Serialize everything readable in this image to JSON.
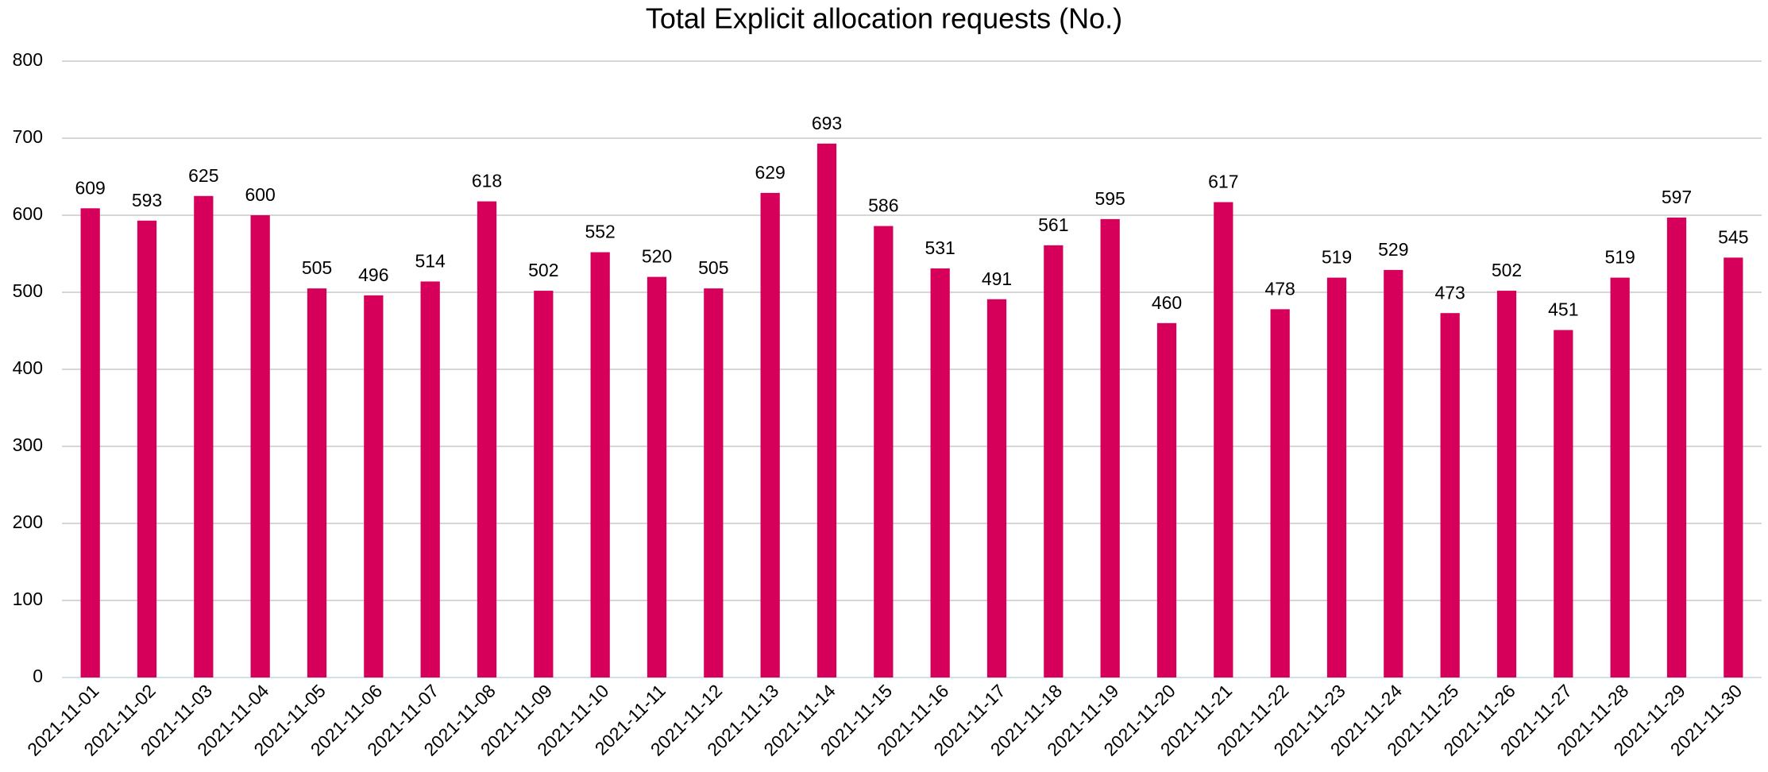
{
  "chart_data": {
    "type": "bar",
    "title": "Total Explicit allocation requests (No.)",
    "categories": [
      "2021-11-01",
      "2021-11-02",
      "2021-11-03",
      "2021-11-04",
      "2021-11-05",
      "2021-11-06",
      "2021-11-07",
      "2021-11-08",
      "2021-11-09",
      "2021-11-10",
      "2021-11-11",
      "2021-11-12",
      "2021-11-13",
      "2021-11-14",
      "2021-11-15",
      "2021-11-16",
      "2021-11-17",
      "2021-11-18",
      "2021-11-19",
      "2021-11-20",
      "2021-11-21",
      "2021-11-22",
      "2021-11-23",
      "2021-11-24",
      "2021-11-25",
      "2021-11-26",
      "2021-11-27",
      "2021-11-28",
      "2021-11-29",
      "2021-11-30"
    ],
    "values": [
      609,
      593,
      625,
      600,
      505,
      496,
      514,
      618,
      502,
      552,
      520,
      505,
      629,
      693,
      586,
      531,
      491,
      561,
      595,
      460,
      617,
      478,
      519,
      529,
      473,
      502,
      451,
      519,
      597,
      545
    ],
    "color": "#d6005a",
    "ylim": [
      0,
      800
    ],
    "yticks": [
      0,
      100,
      200,
      300,
      400,
      500,
      600,
      700,
      800
    ],
    "grid": true
  }
}
